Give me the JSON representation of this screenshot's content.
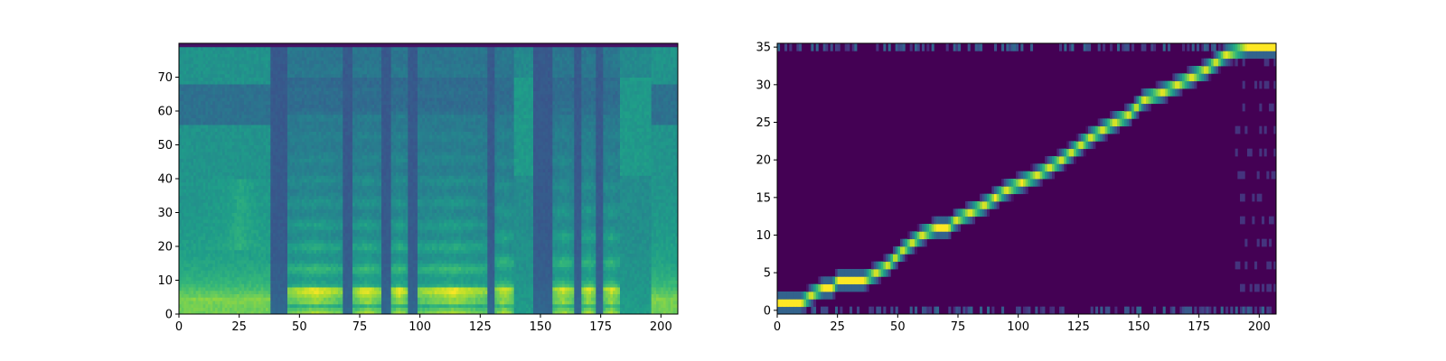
{
  "colors": {
    "background": "#ffffff",
    "colormap": [
      "#440154",
      "#482878",
      "#3e4a89",
      "#31688e",
      "#26828e",
      "#1f9e89",
      "#35b779",
      "#6ece58",
      "#b5de2b",
      "#fde725"
    ]
  },
  "chart_data": [
    {
      "type": "heatmap",
      "title": "",
      "xlabel": "",
      "ylabel": "",
      "xlim": [
        0,
        207
      ],
      "ylim": [
        0,
        80
      ],
      "x_ticks": [
        0,
        25,
        50,
        75,
        100,
        125,
        150,
        175,
        200
      ],
      "y_ticks": [
        0,
        10,
        20,
        30,
        40,
        50,
        60,
        70
      ],
      "grid": false,
      "colormap": "viridis",
      "frame_count": 207,
      "bin_count": 80,
      "segments": [
        {
          "start": 0,
          "end": 38,
          "kind": "noise"
        },
        {
          "start": 38,
          "end": 45,
          "kind": "silence"
        },
        {
          "start": 45,
          "end": 68,
          "kind": "voiced",
          "f0": 6.5
        },
        {
          "start": 68,
          "end": 72,
          "kind": "silence"
        },
        {
          "start": 72,
          "end": 84,
          "kind": "voiced",
          "f0": 6.5
        },
        {
          "start": 84,
          "end": 88,
          "kind": "silence"
        },
        {
          "start": 88,
          "end": 95,
          "kind": "voiced",
          "f0": 6.5
        },
        {
          "start": 95,
          "end": 99,
          "kind": "silence"
        },
        {
          "start": 99,
          "end": 128,
          "kind": "voiced",
          "f0": 6.5
        },
        {
          "start": 128,
          "end": 131,
          "kind": "silence"
        },
        {
          "start": 131,
          "end": 139,
          "kind": "voiced",
          "f0": 7.5
        },
        {
          "start": 139,
          "end": 147,
          "kind": "fricative"
        },
        {
          "start": 147,
          "end": 155,
          "kind": "silence"
        },
        {
          "start": 155,
          "end": 164,
          "kind": "voiced",
          "f0": 7.5
        },
        {
          "start": 164,
          "end": 167,
          "kind": "silence"
        },
        {
          "start": 167,
          "end": 173,
          "kind": "voiced",
          "f0": 7.5
        },
        {
          "start": 173,
          "end": 176,
          "kind": "silence"
        },
        {
          "start": 176,
          "end": 183,
          "kind": "voiced",
          "f0": 7.5
        },
        {
          "start": 183,
          "end": 196,
          "kind": "fricative"
        },
        {
          "start": 196,
          "end": 207,
          "kind": "noise"
        }
      ]
    },
    {
      "type": "heatmap",
      "title": "",
      "xlabel": "",
      "ylabel": "",
      "xlim": [
        0,
        207
      ],
      "ylim": [
        -0.5,
        35.5
      ],
      "x_ticks": [
        0,
        25,
        50,
        75,
        100,
        125,
        150,
        175,
        200
      ],
      "y_ticks": [
        0,
        5,
        10,
        15,
        20,
        25,
        30,
        35
      ],
      "grid": false,
      "colormap": "viridis",
      "frame_count": 207,
      "token_count": 36,
      "alignment_path": [
        [
          0,
          1
        ],
        [
          10,
          1
        ],
        [
          14,
          2
        ],
        [
          19,
          3
        ],
        [
          23,
          3
        ],
        [
          25,
          4
        ],
        [
          36,
          4
        ],
        [
          41,
          5
        ],
        [
          46,
          6
        ],
        [
          52,
          8
        ],
        [
          60,
          10
        ],
        [
          66,
          11
        ],
        [
          71,
          11
        ],
        [
          74,
          12
        ],
        [
          80,
          13
        ],
        [
          86,
          14
        ],
        [
          95,
          16
        ],
        [
          108,
          18
        ],
        [
          118,
          20
        ],
        [
          130,
          23
        ],
        [
          140,
          25
        ],
        [
          146,
          26
        ],
        [
          152,
          28
        ],
        [
          160,
          29
        ],
        [
          166,
          30
        ],
        [
          172,
          31
        ],
        [
          178,
          32
        ],
        [
          182,
          33
        ],
        [
          186,
          34
        ],
        [
          195,
          35
        ],
        [
          207,
          35
        ]
      ]
    }
  ]
}
